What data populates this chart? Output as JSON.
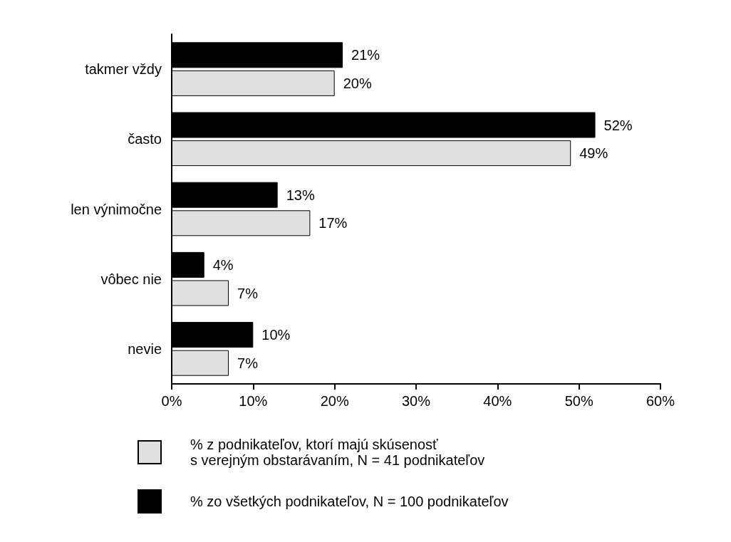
{
  "chart_data": {
    "type": "bar",
    "orientation": "horizontal",
    "categories": [
      "takmer vždy",
      "často",
      "len výnimočne",
      "vôbec nie",
      "nevie"
    ],
    "series": [
      {
        "name": "% zo všetkých podnikateľov, N = 100 podnikateľov",
        "color": "#000000",
        "values": [
          21,
          52,
          13,
          4,
          10
        ],
        "value_labels": [
          "21%",
          "52%",
          "13%",
          "4%",
          "10%"
        ]
      },
      {
        "name": "% z podnikateľov, ktorí majú skúsenosť\ns verejným obstarávaním, N = 41 podnikateľov",
        "color": "#e0e0e0",
        "values": [
          20,
          49,
          17,
          7,
          7
        ],
        "value_labels": [
          "20%",
          "49%",
          "17%",
          "7%",
          "7%"
        ]
      }
    ],
    "xlim": [
      0,
      60
    ],
    "xticks": [
      {
        "value": 0,
        "label": "0%"
      },
      {
        "value": 10,
        "label": "10%"
      },
      {
        "value": 20,
        "label": "20%"
      },
      {
        "value": 30,
        "label": "30%"
      },
      {
        "value": 40,
        "label": "40%"
      },
      {
        "value": 50,
        "label": "50%"
      },
      {
        "value": 60,
        "label": "60%"
      }
    ],
    "grid": false,
    "legend": "bottom"
  }
}
